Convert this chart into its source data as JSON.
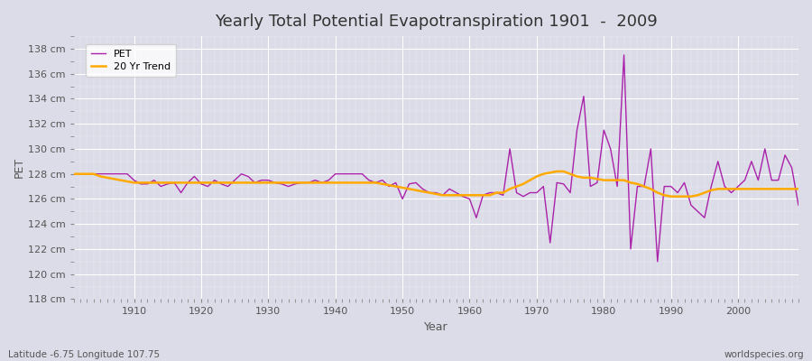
{
  "title": "Yearly Total Potential Evapotranspiration 1901  -  2009",
  "xlabel": "Year",
  "ylabel": "PET",
  "subtitle_left": "Latitude -6.75 Longitude 107.75",
  "subtitle_right": "worldspecies.org",
  "bg_color": "#dcdce8",
  "plot_bg_color": "#dcdce8",
  "pet_color": "#aa22aa",
  "trend_color": "#ffaa00",
  "ylim": [
    118,
    139
  ],
  "ytick_labels": [
    "118 cm",
    "120 cm",
    "122 cm",
    "124 cm",
    "126 cm",
    "128 cm",
    "130 cm",
    "132 cm",
    "134 cm",
    "136 cm",
    "138 cm"
  ],
  "ytick_values": [
    118,
    120,
    122,
    124,
    126,
    128,
    130,
    132,
    134,
    136,
    138
  ],
  "years": [
    1901,
    1902,
    1903,
    1904,
    1905,
    1906,
    1907,
    1908,
    1909,
    1910,
    1911,
    1912,
    1913,
    1914,
    1915,
    1916,
    1917,
    1918,
    1919,
    1920,
    1921,
    1922,
    1923,
    1924,
    1925,
    1926,
    1927,
    1928,
    1929,
    1930,
    1931,
    1932,
    1933,
    1934,
    1935,
    1936,
    1937,
    1938,
    1939,
    1940,
    1941,
    1942,
    1943,
    1944,
    1945,
    1946,
    1947,
    1948,
    1949,
    1950,
    1951,
    1952,
    1953,
    1954,
    1955,
    1956,
    1957,
    1958,
    1959,
    1960,
    1961,
    1962,
    1963,
    1964,
    1965,
    1966,
    1967,
    1968,
    1969,
    1970,
    1971,
    1972,
    1973,
    1974,
    1975,
    1976,
    1977,
    1978,
    1979,
    1980,
    1981,
    1982,
    1983,
    1984,
    1985,
    1986,
    1987,
    1988,
    1989,
    1990,
    1991,
    1992,
    1993,
    1994,
    1995,
    1996,
    1997,
    1998,
    1999,
    2000,
    2001,
    2002,
    2003,
    2004,
    2005,
    2006,
    2007,
    2008,
    2009
  ],
  "pet_values": [
    128.0,
    128.0,
    128.0,
    128.0,
    128.0,
    128.0,
    128.0,
    128.0,
    128.0,
    127.5,
    127.2,
    127.2,
    127.5,
    127.0,
    127.2,
    127.3,
    126.5,
    127.3,
    127.8,
    127.2,
    127.0,
    127.5,
    127.2,
    127.0,
    127.5,
    128.0,
    127.8,
    127.3,
    127.5,
    127.5,
    127.3,
    127.2,
    127.0,
    127.2,
    127.3,
    127.3,
    127.5,
    127.3,
    127.5,
    128.0,
    128.0,
    128.0,
    128.0,
    128.0,
    127.5,
    127.3,
    127.5,
    127.0,
    127.3,
    126.0,
    127.2,
    127.3,
    126.8,
    126.5,
    126.5,
    126.3,
    126.8,
    126.5,
    126.2,
    126.0,
    124.5,
    126.3,
    126.5,
    126.5,
    126.3,
    130.0,
    126.5,
    126.2,
    126.5,
    126.5,
    127.0,
    122.5,
    127.3,
    127.2,
    126.5,
    131.5,
    134.2,
    127.0,
    127.3,
    131.5,
    130.0,
    127.0,
    137.5,
    122.0,
    127.0,
    127.0,
    130.0,
    121.0,
    127.0,
    127.0,
    126.5,
    127.3,
    125.5,
    125.0,
    124.5,
    127.0,
    129.0,
    127.0,
    126.5,
    127.0,
    127.5,
    129.0,
    127.5,
    130.0,
    127.5,
    127.5,
    129.5,
    128.5,
    125.5
  ],
  "trend_values": [
    128.0,
    128.0,
    128.0,
    128.0,
    127.8,
    127.7,
    127.6,
    127.5,
    127.4,
    127.3,
    127.3,
    127.3,
    127.3,
    127.3,
    127.3,
    127.3,
    127.3,
    127.3,
    127.3,
    127.3,
    127.3,
    127.3,
    127.3,
    127.3,
    127.3,
    127.3,
    127.3,
    127.3,
    127.3,
    127.3,
    127.3,
    127.3,
    127.3,
    127.3,
    127.3,
    127.3,
    127.3,
    127.3,
    127.3,
    127.3,
    127.3,
    127.3,
    127.3,
    127.3,
    127.3,
    127.3,
    127.2,
    127.1,
    127.0,
    126.9,
    126.8,
    126.7,
    126.6,
    126.5,
    126.4,
    126.3,
    126.3,
    126.3,
    126.3,
    126.3,
    126.3,
    126.3,
    126.3,
    126.5,
    126.5,
    126.8,
    127.0,
    127.2,
    127.5,
    127.8,
    128.0,
    128.1,
    128.2,
    128.2,
    128.0,
    127.8,
    127.7,
    127.7,
    127.6,
    127.5,
    127.5,
    127.5,
    127.5,
    127.3,
    127.2,
    127.0,
    126.8,
    126.5,
    126.3,
    126.2,
    126.2,
    126.2,
    126.2,
    126.3,
    126.5,
    126.7,
    126.8,
    126.8,
    126.8,
    126.8,
    126.8,
    126.8,
    126.8,
    126.8,
    126.8,
    126.8,
    126.8,
    126.8,
    126.8
  ]
}
